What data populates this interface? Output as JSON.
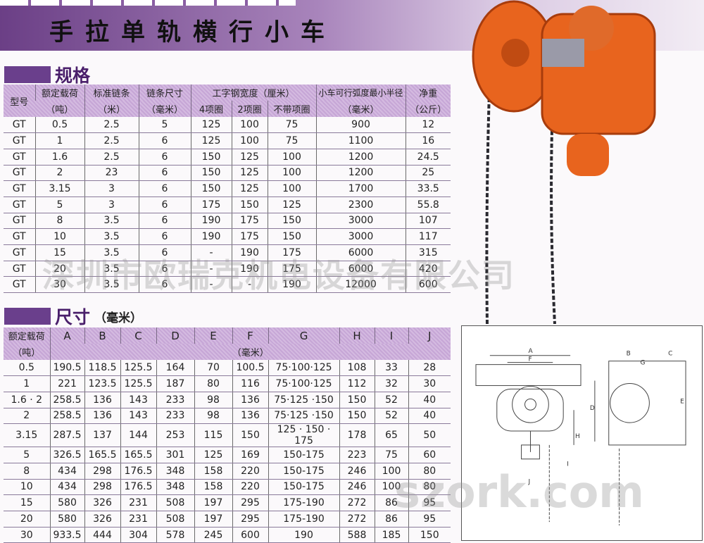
{
  "title": "手拉单轨横行小车",
  "spec": {
    "heading": "规格",
    "headers": {
      "model": "型号",
      "load": "额定载荷",
      "load_unit": "（吨）",
      "chain": "标准链条",
      "chain_unit": "（米）",
      "chain_size": "链条尺寸",
      "chain_size_unit": "（毫米）",
      "beam": "工字钢宽度（厘米）",
      "beam4": "4项圈",
      "beam2": "2项圈",
      "beam0": "不带项圈",
      "radius": "小车可行弧度最小半径",
      "radius_unit": "（毫米）",
      "weight": "净重",
      "weight_unit": "（公斤）"
    },
    "rows": [
      [
        "GT",
        "0.5",
        "2.5",
        "5",
        "125",
        "100",
        "75",
        "900",
        "12"
      ],
      [
        "GT",
        "1",
        "2.5",
        "6",
        "125",
        "100",
        "75",
        "1100",
        "16"
      ],
      [
        "GT",
        "1.6",
        "2.5",
        "6",
        "150",
        "125",
        "100",
        "1200",
        "24.5"
      ],
      [
        "GT",
        "2",
        "23",
        "6",
        "150",
        "125",
        "100",
        "1200",
        "25"
      ],
      [
        "GT",
        "3.15",
        "3",
        "6",
        "150",
        "125",
        "100",
        "1700",
        "33.5"
      ],
      [
        "GT",
        "5",
        "3",
        "6",
        "175",
        "150",
        "125",
        "2300",
        "55.8"
      ],
      [
        "GT",
        "8",
        "3.5",
        "6",
        "190",
        "175",
        "150",
        "3000",
        "107"
      ],
      [
        "GT",
        "10",
        "3.5",
        "6",
        "190",
        "175",
        "150",
        "3000",
        "117"
      ],
      [
        "GT",
        "15",
        "3.5",
        "6",
        "-",
        "190",
        "175",
        "6000",
        "315"
      ],
      [
        "GT",
        "20",
        "3.5",
        "6",
        "-",
        "190",
        "175",
        "6000",
        "420"
      ],
      [
        "GT",
        "30",
        "3.5",
        "6",
        "-",
        "-",
        "190",
        "12000",
        "600"
      ]
    ]
  },
  "dims": {
    "heading": "尺寸",
    "unit": "（毫米）",
    "headers": [
      "额定载荷",
      "A",
      "B",
      "C",
      "D",
      "E",
      "F",
      "G",
      "H",
      "I",
      "J"
    ],
    "load_unit": "（吨）",
    "mm_unit": "（毫米）",
    "rows": [
      [
        "0.5",
        "190.5",
        "118.5",
        "125.5",
        "164",
        "70",
        "100.5",
        "75·100·125",
        "108",
        "33",
        "28"
      ],
      [
        "1",
        "221",
        "123.5",
        "125.5",
        "187",
        "80",
        "116",
        "75·100·125",
        "112",
        "32",
        "30"
      ],
      [
        "1.6 · 2",
        "258.5",
        "136",
        "143",
        "233",
        "98",
        "136",
        "75·125 ·150",
        "150",
        "52",
        "40"
      ],
      [
        "2",
        "258.5",
        "136",
        "143",
        "233",
        "98",
        "136",
        "75·125 ·150",
        "150",
        "52",
        "40"
      ],
      [
        "3.15",
        "287.5",
        "137",
        "144",
        "253",
        "115",
        "150",
        "125 · 150 · 175",
        "178",
        "65",
        "50"
      ],
      [
        "5",
        "326.5",
        "165.5",
        "165.5",
        "301",
        "125",
        "169",
        "150-175",
        "223",
        "75",
        "60"
      ],
      [
        "8",
        "434",
        "298",
        "176.5",
        "348",
        "158",
        "220",
        "150-175",
        "246",
        "100",
        "80"
      ],
      [
        "10",
        "434",
        "298",
        "176.5",
        "348",
        "158",
        "220",
        "150-175",
        "246",
        "100",
        "80"
      ],
      [
        "15",
        "580",
        "326",
        "231",
        "508",
        "197",
        "295",
        "175-190",
        "272",
        "86",
        "95"
      ],
      [
        "20",
        "580",
        "326",
        "231",
        "508",
        "197",
        "295",
        "175-190",
        "272",
        "86",
        "95"
      ],
      [
        "30",
        "933.5",
        "444",
        "304",
        "578",
        "245",
        "600",
        "190",
        "588",
        "185",
        "150"
      ]
    ]
  },
  "watermark": {
    "company": "深圳市欧瑞克机电设备有限公司",
    "site": "szork.com"
  },
  "diagram_labels": [
    "A",
    "F",
    "B",
    "G",
    "C",
    "D",
    "E",
    "H",
    "I",
    "J"
  ],
  "colors": {
    "accent": "#6a3f8c",
    "header": "#c9aad8",
    "product": "#e8641e"
  }
}
